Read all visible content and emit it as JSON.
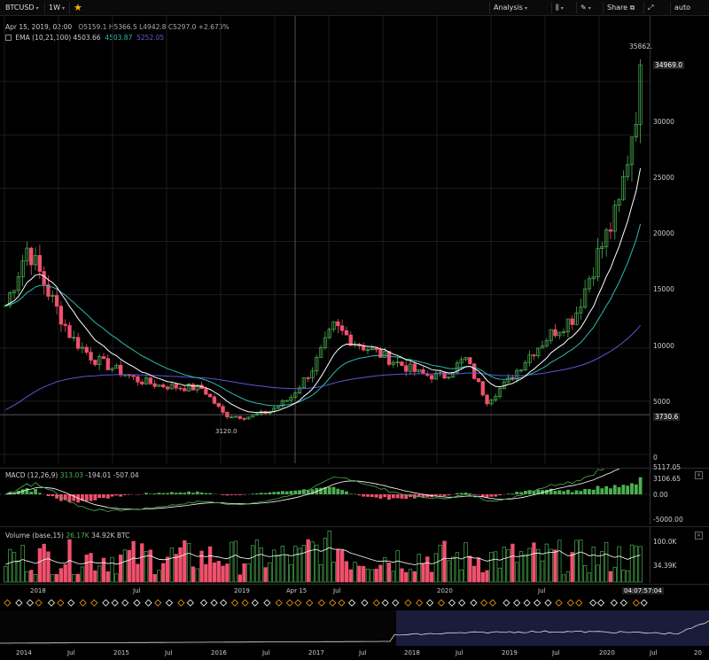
{
  "toolbar": {
    "symbol": "BTCUSD",
    "interval": "1W",
    "analysis": "Analysis",
    "share": "Share",
    "auto": "auto"
  },
  "legend": {
    "date": "Apr 15, 2019, 02:00",
    "ohlc": "O5159.1 H5366.5 L4942.8 C5297.0 +2.673%",
    "ema_name": "EMA (10,21,100)",
    "ema1": "4503.66",
    "ema2": "4503.87",
    "ema3": "5252.05",
    "macd_name": "MACD (12,26,9)",
    "macd1": "313.03",
    "macd2": "-194.01",
    "macd3": "-507.04",
    "vol_name": "Volume (base,15)",
    "vol1": "26.17K",
    "vol2": "34.92K BTC"
  },
  "price_axis": {
    "ticks": [
      "35862.",
      "34969.0",
      "30000",
      "25000",
      "20000",
      "15000",
      "10000",
      "5000",
      "3730.6",
      "0"
    ],
    "low_label": "3120.0"
  },
  "macd_axis": {
    "ticks": [
      "5117.05",
      "3106.65",
      "0.00",
      "-5000.00"
    ]
  },
  "volume_axis": {
    "ticks": [
      "100.0K",
      "34.39K"
    ]
  },
  "time_axis": {
    "labels": [
      "2018",
      "Jul",
      "2019",
      "Apr 15",
      "Jul",
      "2020",
      "Jul"
    ],
    "cursor_time": "04:07:57:04"
  },
  "navigator": {
    "labels": [
      "2014",
      "Jul",
      "2015",
      "Jul",
      "2016",
      "Jul",
      "2017",
      "Jul",
      "2018",
      "Jul",
      "2019",
      "Jul",
      "2020",
      "Jul",
      "20"
    ]
  },
  "chart_data": {
    "type": "candlestick",
    "title": "BTCUSD",
    "interval": "1W",
    "y_range": [
      0,
      37000
    ],
    "series": [
      {
        "name": "BTCUSD",
        "close_approx": [
          14000,
          19500,
          15000,
          11000,
          9000,
          8000,
          7000,
          6500,
          6300,
          6200,
          3700,
          3500,
          4000,
          5300,
          8000,
          12000,
          10500,
          9500,
          8500,
          7500,
          7300,
          9000,
          5000,
          7000,
          9500,
          11500,
          13000,
          18500,
          23000,
          34969
        ]
      },
      {
        "name": "EMA 10"
      },
      {
        "name": "EMA 21"
      },
      {
        "name": "EMA 100"
      }
    ]
  },
  "colors": {
    "up": "#4caf50",
    "down": "#f0506e",
    "ema_fast": "#ffffff",
    "ema_mid": "#2bbbad",
    "ema_slow": "#5b55d6",
    "navigator_bg": "#2a2a60"
  }
}
